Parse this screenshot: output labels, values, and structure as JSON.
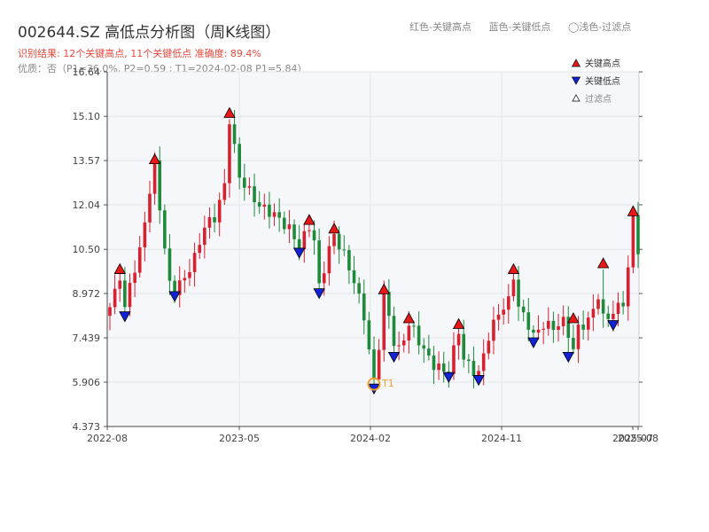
{
  "title": "002644.SZ 高低点分析图（周K线图）",
  "summary": "识别结果: 12个关键高点, 11个关键低点  准确度: 89.4%",
  "quality": "优质：否（P1=36.0%, P2=0.59 ; T1=2024-02-08 P1=5.84）",
  "top_legend": [
    "红色-关键高点",
    "蓝色-关键低点",
    "◯浅色-过滤点"
  ],
  "colors": {
    "up": "#d9202f",
    "down": "#1e8a3a",
    "high": "#e81818",
    "low": "#1222d6",
    "filtered": "#ffffff",
    "t1": "#f0a030"
  },
  "chart_data": {
    "type": "candlestick",
    "xlabel": "",
    "ylabel": "",
    "ylim": [
      4.373,
      16.64
    ],
    "yticks": [
      "4.373",
      "5.906",
      "7.439",
      "8.972",
      "10.50",
      "12.04",
      "13.57",
      "15.10",
      "16.64"
    ],
    "xticks": [
      "2022-08",
      "2023-05",
      "2024-02",
      "2024-11",
      "2025-07",
      "2025-08"
    ],
    "legend": {
      "position": "top-right",
      "entries": [
        "关键高点",
        "关键低点",
        "过滤点"
      ]
    },
    "t1_label": "T1",
    "ohlc_anchors": [
      [
        0,
        8.5
      ],
      [
        1,
        9.0
      ],
      [
        2,
        9.6
      ],
      [
        3,
        8.4
      ],
      [
        4,
        9.3
      ],
      [
        6,
        10.4
      ],
      [
        7,
        11.5
      ],
      [
        8,
        12.5
      ],
      [
        9,
        13.4
      ],
      [
        10,
        12.0
      ],
      [
        11,
        10.5
      ],
      [
        12,
        9.3
      ],
      [
        13,
        9.1
      ],
      [
        15,
        9.5
      ],
      [
        17,
        10.2
      ],
      [
        19,
        11.3
      ],
      [
        21,
        11.6
      ],
      [
        23,
        12.7
      ],
      [
        24,
        15.0
      ],
      [
        25,
        14.0
      ],
      [
        26,
        13.0
      ],
      [
        28,
        12.5
      ],
      [
        30,
        12.0
      ],
      [
        33,
        11.7
      ],
      [
        36,
        11.2
      ],
      [
        38,
        10.6
      ],
      [
        40,
        11.3
      ],
      [
        41,
        10.8
      ],
      [
        42,
        9.2
      ],
      [
        44,
        10.5
      ],
      [
        45,
        11.0
      ],
      [
        47,
        10.3
      ],
      [
        49,
        9.4
      ],
      [
        51,
        8.2
      ],
      [
        52,
        7.0
      ],
      [
        53,
        5.9
      ],
      [
        54,
        7.2
      ],
      [
        55,
        8.9
      ],
      [
        56,
        8.2
      ],
      [
        57,
        7.3
      ],
      [
        58,
        7.0
      ],
      [
        60,
        7.9
      ],
      [
        61,
        7.7
      ],
      [
        63,
        7.0
      ],
      [
        65,
        6.5
      ],
      [
        67,
        6.3
      ],
      [
        68,
        6.3
      ],
      [
        70,
        7.7
      ],
      [
        71,
        6.7
      ],
      [
        73,
        6.3
      ],
      [
        74,
        6.2
      ],
      [
        76,
        7.5
      ],
      [
        78,
        8.3
      ],
      [
        80,
        8.7
      ],
      [
        81,
        9.6
      ],
      [
        82,
        8.5
      ],
      [
        84,
        7.9
      ],
      [
        85,
        7.5
      ],
      [
        87,
        7.9
      ],
      [
        89,
        7.8
      ],
      [
        91,
        8.0
      ],
      [
        92,
        7.6
      ],
      [
        93,
        7.0
      ],
      [
        94,
        7.8
      ],
      [
        96,
        8.0
      ],
      [
        98,
        8.9
      ],
      [
        99,
        8.1
      ],
      [
        101,
        8.3
      ],
      [
        103,
        8.7
      ],
      [
        104,
        9.8
      ],
      [
        105,
        11.6
      ],
      [
        106,
        10.5
      ]
    ],
    "key_highs": [
      {
        "i": 2,
        "price": 9.6
      },
      {
        "i": 9,
        "price": 13.4
      },
      {
        "i": 24,
        "price": 15.0
      },
      {
        "i": 40,
        "price": 11.3
      },
      {
        "i": 45,
        "price": 11.0
      },
      {
        "i": 55,
        "price": 8.9
      },
      {
        "i": 60,
        "price": 7.9
      },
      {
        "i": 70,
        "price": 7.7
      },
      {
        "i": 81,
        "price": 9.6
      },
      {
        "i": 93,
        "price": 7.9
      },
      {
        "i": 99,
        "price": 9.8
      },
      {
        "i": 105,
        "price": 11.6
      }
    ],
    "key_lows": [
      {
        "i": 3,
        "price": 8.4
      },
      {
        "i": 13,
        "price": 9.1
      },
      {
        "i": 38,
        "price": 10.6
      },
      {
        "i": 42,
        "price": 9.2
      },
      {
        "i": 53,
        "price": 5.9
      },
      {
        "i": 57,
        "price": 7.0
      },
      {
        "i": 68,
        "price": 6.3
      },
      {
        "i": 74,
        "price": 6.2
      },
      {
        "i": 85,
        "price": 7.5
      },
      {
        "i": 92,
        "price": 7.0
      },
      {
        "i": 101,
        "price": 8.1
      }
    ],
    "t1": {
      "i": 53,
      "price": 5.84
    }
  }
}
